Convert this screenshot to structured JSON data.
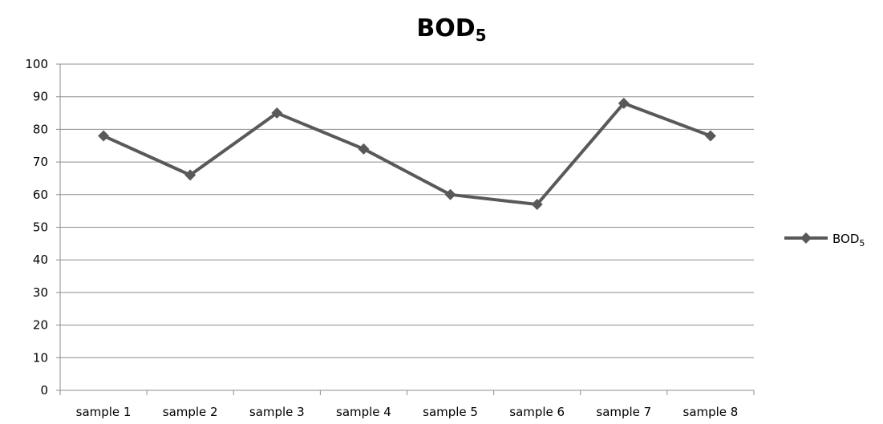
{
  "chart_data": {
    "type": "line",
    "title": "BOD",
    "title_subscript": "5",
    "categories": [
      "sample 1",
      "sample 2",
      "sample 3",
      "sample 4",
      "sample 5",
      "sample 6",
      "sample 7",
      "sample 8"
    ],
    "series": [
      {
        "name": "BOD",
        "name_subscript": "5",
        "values": [
          78,
          66,
          85,
          74,
          60,
          57,
          88,
          78
        ],
        "color": "#595959",
        "marker": "diamond"
      }
    ],
    "y_ticks": [
      "0",
      "10",
      "20",
      "30",
      "40",
      "50",
      "60",
      "70",
      "80",
      "90",
      "100"
    ],
    "ylim": [
      0,
      100
    ],
    "xlabel": "",
    "ylabel": "",
    "grid": true,
    "legend_position": "right"
  }
}
